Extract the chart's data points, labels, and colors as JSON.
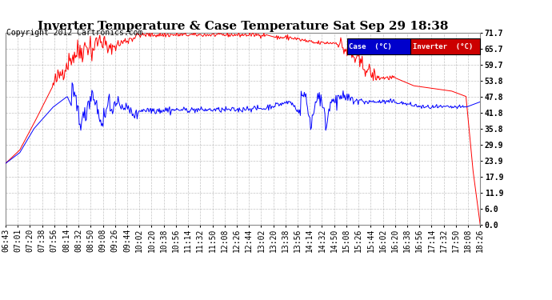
{
  "title": "Inverter Temperature & Case Temperature Sat Sep 29 18:38",
  "copyright": "Copyright 2012 Cartronics.com",
  "yticks": [
    0.0,
    6.0,
    11.9,
    17.9,
    23.9,
    29.9,
    35.8,
    41.8,
    47.8,
    53.8,
    59.7,
    65.7,
    71.7
  ],
  "ylim": [
    0.0,
    71.7
  ],
  "xtick_labels": [
    "06:43",
    "07:01",
    "07:20",
    "07:38",
    "07:56",
    "08:14",
    "08:32",
    "08:50",
    "09:08",
    "09:26",
    "09:44",
    "10:02",
    "10:20",
    "10:38",
    "10:56",
    "11:14",
    "11:32",
    "11:50",
    "12:08",
    "12:26",
    "12:44",
    "13:02",
    "13:20",
    "13:38",
    "13:56",
    "14:14",
    "14:32",
    "14:50",
    "15:08",
    "15:26",
    "15:44",
    "16:02",
    "16:20",
    "16:38",
    "16:56",
    "17:14",
    "17:32",
    "17:50",
    "18:08",
    "18:26"
  ],
  "legend_case_label": "Case  (°C)",
  "legend_inverter_label": "Inverter  (°C)",
  "case_color": "#0000ff",
  "inverter_color": "#ff0000",
  "bg_color": "#ffffff",
  "plot_bg_color": "#ffffff",
  "grid_color": "#aaaaaa",
  "title_fontsize": 11,
  "axis_fontsize": 7,
  "copyright_fontsize": 7
}
